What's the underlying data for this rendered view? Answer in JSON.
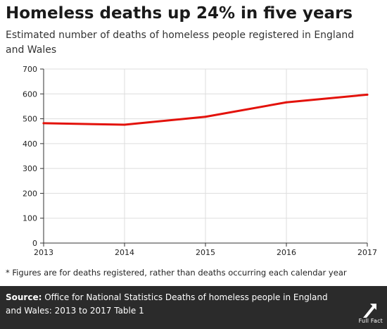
{
  "header": {
    "title": "Homeless deaths up 24% in five years",
    "subtitle": "Estimated number of deaths of homeless people registered in England and Wales"
  },
  "footnote": "* Figures are for deaths registered, rather than deaths occurring each calendar year",
  "footer": {
    "source_label": "Source:",
    "source_text": "Office for National Statistics Deaths of homeless people in England and Wales: 2013 to 2017 Table 1",
    "logo_text": "Full Fact",
    "logo_icon": "full-fact-logo-icon"
  },
  "colors": {
    "line": "#e3120b",
    "grid": "#dddddd",
    "footer_bg": "#2b2b2b"
  },
  "chart_data": {
    "type": "line",
    "x": [
      "2013",
      "2014",
      "2015",
      "2016",
      "2017"
    ],
    "series": [
      {
        "values": [
          482,
          476,
          508,
          566,
          597
        ]
      }
    ],
    "yticks": [
      "0",
      "100",
      "200",
      "300",
      "400",
      "500",
      "600",
      "700"
    ],
    "ylim": [
      0,
      700
    ],
    "xlabel": "",
    "ylabel": "",
    "grid": true
  }
}
